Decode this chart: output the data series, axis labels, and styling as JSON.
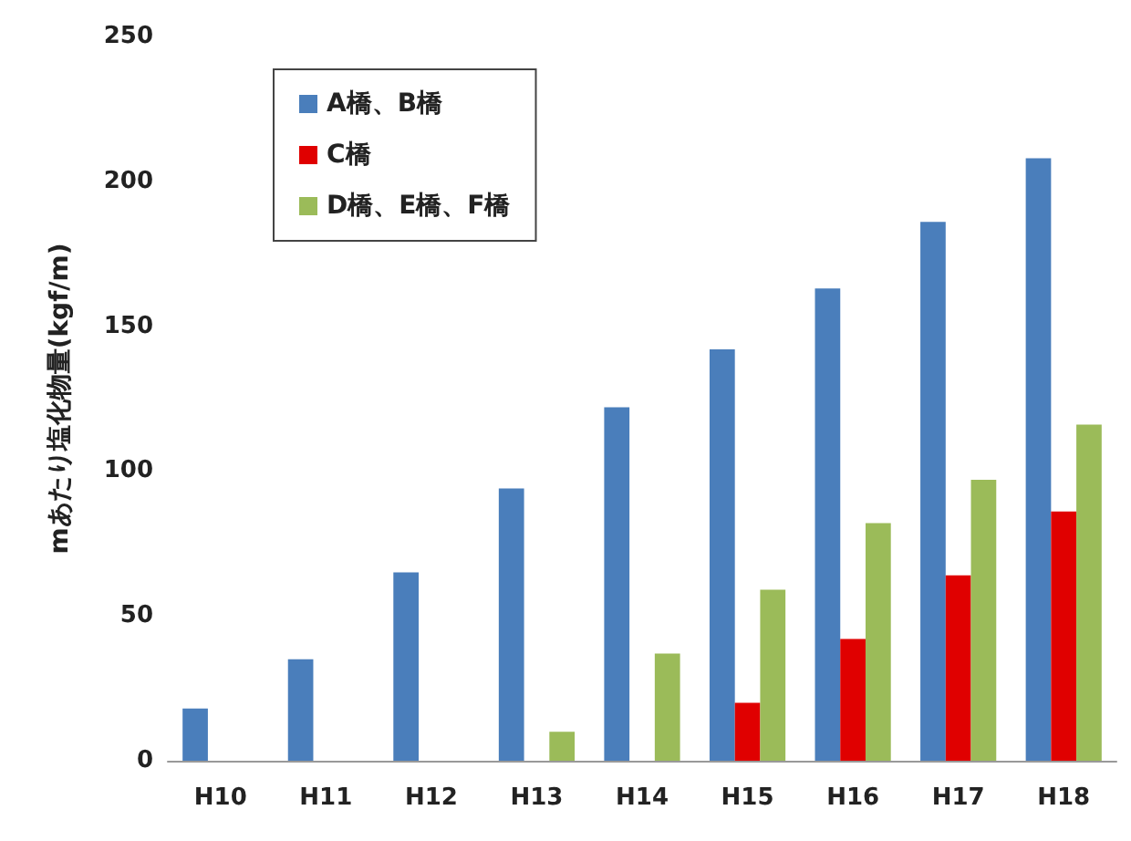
{
  "chart_data": {
    "type": "bar",
    "ylabel": "mあたり塩化物量(kgf/m)",
    "categories": [
      "H10",
      "H11",
      "H12",
      "H13",
      "H14",
      "H15",
      "H16",
      "H17",
      "H18"
    ],
    "series": [
      {
        "name": "A橋、B橋",
        "color": "#4a7ebb",
        "values": [
          18,
          35,
          65,
          94,
          122,
          142,
          163,
          186,
          208
        ]
      },
      {
        "name": "C橋",
        "color": "#e00000",
        "values": [
          null,
          null,
          null,
          null,
          null,
          20,
          42,
          64,
          86
        ]
      },
      {
        "name": "D橋、E橋、F橋",
        "color": "#9bbb59",
        "values": [
          null,
          null,
          null,
          10,
          37,
          59,
          82,
          97,
          116
        ]
      }
    ],
    "ylim": [
      0,
      250
    ],
    "yticks": [
      0,
      50,
      100,
      150,
      200,
      250
    ],
    "grid": false,
    "legend": "top left"
  }
}
